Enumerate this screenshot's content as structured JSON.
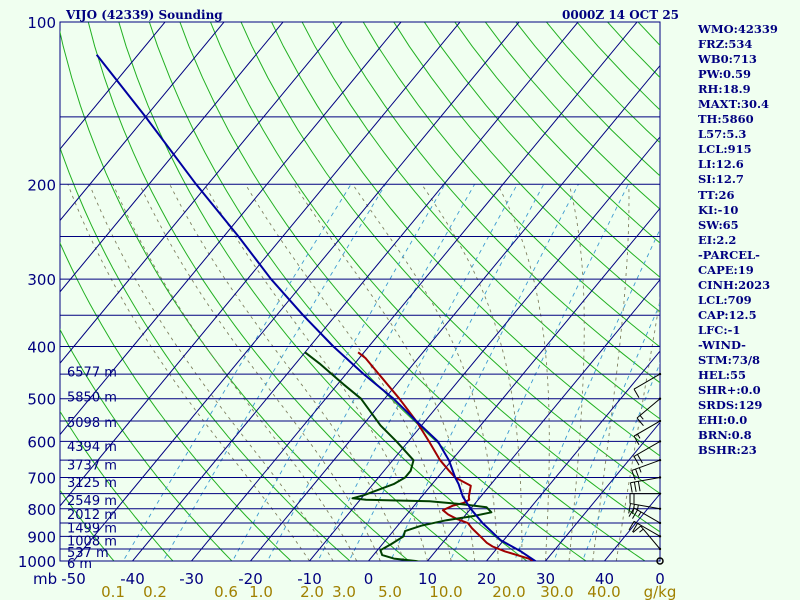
{
  "header": {
    "station_title": "VIJO (42339) Sounding",
    "run_time": "0000Z 14 OCT 25"
  },
  "indices": [
    "WMO:42339",
    "FRZ:534",
    "WB0:713",
    "PW:0.59",
    "RH:18.9",
    "MAXT:30.4",
    "TH:5860",
    "L57:5.3",
    "LCL:915",
    "LI:12.6",
    "SI:12.7",
    "TT:26",
    "KI:-10",
    "SW:65",
    "EI:2.2",
    "-PARCEL-",
    "CAPE:19",
    "CINH:2023",
    "LCL:709",
    "CAP:12.5",
    "LFC:-1",
    "-WIND-",
    "STM:73/8",
    "HEL:55",
    "SHR+:0.0",
    "SRDS:129",
    "EHI:0.0",
    "BRN:0.8",
    "BSHR:23"
  ],
  "colors": {
    "background": "#f0fff0",
    "isobar": "#000080",
    "isotherm": "#000080",
    "dry_adiabat": "#22b022",
    "moist_adiabat": "#808060",
    "mixing_ratio": "#3a9ad0",
    "parcel": "#0000a0",
    "temperature": "#a00000",
    "dewpoint": "#004000",
    "text": "#000080",
    "axis_label": "#a08000"
  },
  "chart_data": {
    "type": "skew-t log-p",
    "y_axis_unit_label": "mb",
    "pressure_levels": [
      100,
      200,
      300,
      400,
      500,
      600,
      700,
      800,
      900,
      1000
    ],
    "pressure_range": [
      100,
      1000
    ],
    "temperature_ticks": [
      -50,
      -40,
      -30,
      -20,
      -10,
      0,
      10,
      20,
      30,
      40
    ],
    "temperature_tick_labels": [
      "-50",
      "-40",
      "-30",
      "-20",
      "-10",
      "0",
      "10",
      "20",
      "30",
      "40"
    ],
    "mixing_ratio_labels": [
      "0.1",
      "0.2",
      "0.6",
      "1.0",
      "2.0",
      "3.0",
      "5.0",
      "10.0",
      "20.0",
      "30.0",
      "40.0",
      "g/kg"
    ],
    "heights": [
      {
        "label": "6577 m",
        "p": 445
      },
      {
        "label": "5850 m",
        "p": 495
      },
      {
        "label": "5098 m",
        "p": 552
      },
      {
        "label": "4394 m",
        "p": 612
      },
      {
        "label": "3737 m",
        "p": 662
      },
      {
        "label": "3125 m",
        "p": 714
      },
      {
        "label": "2549 m",
        "p": 770
      },
      {
        "label": "2012 m",
        "p": 818
      },
      {
        "label": "1499 m",
        "p": 866
      },
      {
        "label": "1008 m",
        "p": 916
      },
      {
        "label": "537 m",
        "p": 962
      },
      {
        "label": "6 m",
        "p": 1008
      }
    ],
    "series": [
      {
        "key": "temperature",
        "points": [
          [
            1008,
            29.0
          ],
          [
            990,
            26.8
          ],
          [
            960,
            21.8
          ],
          [
            940,
            19.0
          ],
          [
            925,
            17.5
          ],
          [
            900,
            15.5
          ],
          [
            870,
            13.0
          ],
          [
            850,
            11.5
          ],
          [
            835,
            9.0
          ],
          [
            820,
            7.0
          ],
          [
            805,
            5.5
          ],
          [
            790,
            6.5
          ],
          [
            780,
            8.0
          ],
          [
            770,
            8.5
          ],
          [
            760,
            8.0
          ],
          [
            745,
            7.5
          ],
          [
            725,
            6.8
          ],
          [
            700,
            3.0
          ],
          [
            680,
            1.0
          ],
          [
            650,
            -2.0
          ],
          [
            600,
            -6.5
          ],
          [
            550,
            -11.5
          ],
          [
            500,
            -17.5
          ],
          [
            460,
            -23.0
          ],
          [
            420,
            -29.0
          ],
          [
            410,
            -31.0
          ]
        ]
      },
      {
        "key": "dewpoint",
        "points": [
          [
            1008,
            10.0
          ],
          [
            1000,
            8.0
          ],
          [
            990,
            4.0
          ],
          [
            975,
            1.5
          ],
          [
            955,
            0.5
          ],
          [
            930,
            1.5
          ],
          [
            900,
            2.5
          ],
          [
            880,
            2.0
          ],
          [
            860,
            4.0
          ],
          [
            840,
            7.5
          ],
          [
            825,
            11.5
          ],
          [
            812,
            14.0
          ],
          [
            795,
            12.5
          ],
          [
            785,
            8.0
          ],
          [
            775,
            2.0
          ],
          [
            770,
            -9.0
          ],
          [
            765,
            -11.5
          ],
          [
            755,
            -10.0
          ],
          [
            720,
            -6.5
          ],
          [
            700,
            -5.5
          ],
          [
            680,
            -5.5
          ],
          [
            650,
            -6.5
          ],
          [
            600,
            -12.0
          ],
          [
            560,
            -17.0
          ],
          [
            500,
            -24.0
          ],
          [
            470,
            -29.0
          ],
          [
            430,
            -36.0
          ],
          [
            410,
            -40.0
          ]
        ]
      },
      {
        "key": "parcel",
        "points": [
          [
            1008,
            29.0
          ],
          [
            960,
            24.5
          ],
          [
            915,
            19.5
          ],
          [
            850,
            14.0
          ],
          [
            800,
            10.0
          ],
          [
            760,
            7.0
          ],
          [
            720,
            4.5
          ],
          [
            700,
            3.0
          ],
          [
            650,
            -0.5
          ],
          [
            600,
            -5.0
          ],
          [
            550,
            -11.5
          ],
          [
            500,
            -18.5
          ],
          [
            450,
            -27.0
          ],
          [
            400,
            -36.0
          ],
          [
            350,
            -45.5
          ],
          [
            300,
            -56.0
          ],
          [
            250,
            -67.5
          ],
          [
            200,
            -82.0
          ],
          [
            150,
            -100.0
          ],
          [
            115,
            -117.0
          ]
        ]
      }
    ],
    "isotherms": [
      -110,
      -100,
      -90,
      -80,
      -70,
      -60,
      -50,
      -40,
      -30,
      -20,
      -10,
      0,
      10,
      20,
      30,
      40,
      50
    ],
    "dry_adiabats_theta_k": [
      230,
      240,
      250,
      260,
      270,
      280,
      290,
      300,
      310,
      320,
      330,
      340,
      350,
      360,
      370,
      380,
      390,
      400,
      410,
      420,
      430,
      440,
      450,
      460,
      470,
      480,
      490,
      500,
      510,
      520,
      530
    ],
    "moist_adiabats_base_c": [
      -10,
      -6,
      -2,
      2,
      6,
      10,
      14,
      18,
      22,
      26,
      30,
      34,
      38,
      42
    ],
    "mixing_ratio_lines_gkg": [
      0.1,
      0.2,
      0.6,
      1.0,
      2.0,
      3.0,
      5.0,
      10.0,
      20.0,
      30.0,
      40.0
    ],
    "wind_barbs": [
      {
        "p": 1000,
        "dir": 0,
        "spd": 0
      },
      {
        "p": 950,
        "dir": 320,
        "spd": 15
      },
      {
        "p": 900,
        "dir": 300,
        "spd": 20
      },
      {
        "p": 850,
        "dir": 300,
        "spd": 25
      },
      {
        "p": 800,
        "dir": 280,
        "spd": 25
      },
      {
        "p": 750,
        "dir": 270,
        "spd": 20
      },
      {
        "p": 700,
        "dir": 260,
        "spd": 30
      },
      {
        "p": 650,
        "dir": 250,
        "spd": 25
      },
      {
        "p": 600,
        "dir": 240,
        "spd": 20
      },
      {
        "p": 550,
        "dir": 240,
        "spd": 15
      },
      {
        "p": 500,
        "dir": 230,
        "spd": 15
      },
      {
        "p": 450,
        "dir": 240,
        "spd": 10
      }
    ]
  }
}
